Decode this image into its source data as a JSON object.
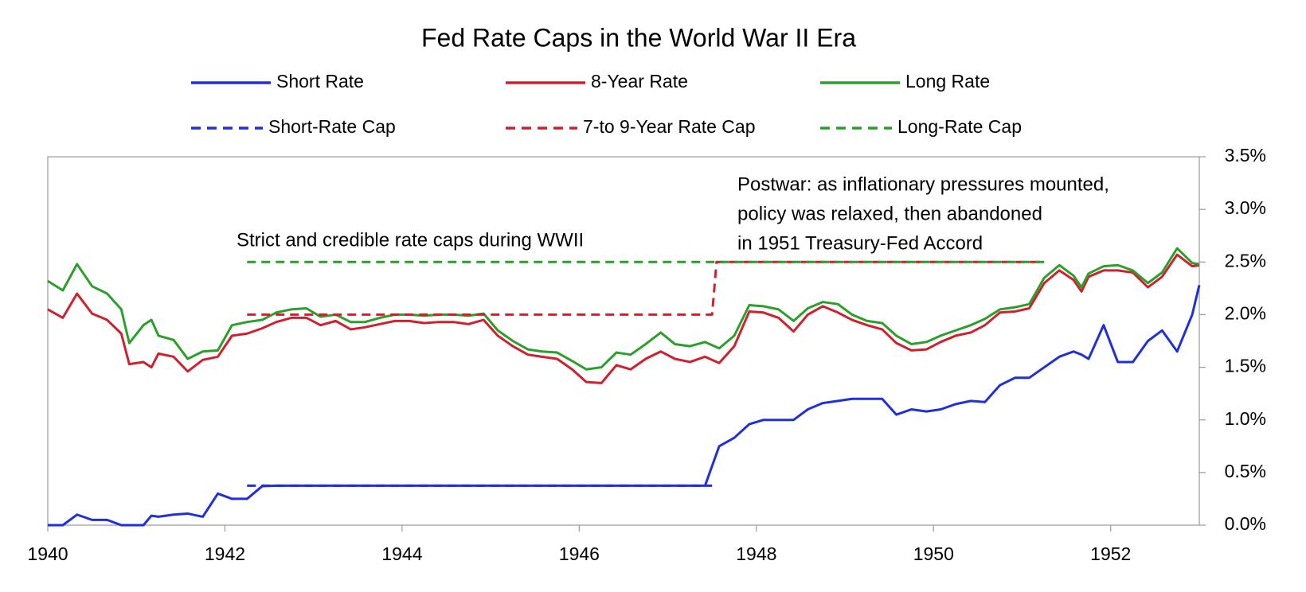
{
  "chart_data": {
    "type": "line",
    "title": "Fed Rate Caps in the World War II Era",
    "x": [
      1940.0,
      1940.17,
      1940.33,
      1940.5,
      1940.67,
      1940.83,
      1940.92,
      1941.08,
      1941.17,
      1941.25,
      1941.42,
      1941.58,
      1941.75,
      1941.92,
      1942.08,
      1942.25,
      1942.42,
      1942.58,
      1942.75,
      1942.92,
      1943.08,
      1943.25,
      1943.42,
      1943.58,
      1943.75,
      1943.92,
      1944.08,
      1944.25,
      1944.42,
      1944.58,
      1944.75,
      1944.92,
      1945.08,
      1945.25,
      1945.42,
      1945.58,
      1945.75,
      1945.92,
      1946.08,
      1946.25,
      1946.42,
      1946.58,
      1946.75,
      1946.92,
      1947.08,
      1947.25,
      1947.42,
      1947.58,
      1947.75,
      1947.92,
      1948.08,
      1948.25,
      1948.42,
      1948.58,
      1948.75,
      1948.92,
      1949.08,
      1949.25,
      1949.42,
      1949.58,
      1949.75,
      1949.92,
      1950.08,
      1950.25,
      1950.42,
      1950.58,
      1950.75,
      1950.92,
      1951.08,
      1951.25,
      1951.42,
      1951.58,
      1951.67,
      1951.75,
      1951.92,
      1952.08,
      1952.25,
      1952.42,
      1952.58,
      1952.75,
      1952.92,
      1953.0
    ],
    "series": [
      {
        "name": "Short Rate",
        "color": "#1f2fe0",
        "dashed": false,
        "values": [
          0.0,
          0.0,
          0.1,
          0.05,
          0.05,
          0.0,
          0.0,
          0.0,
          0.09,
          0.08,
          0.1,
          0.11,
          0.08,
          0.3,
          0.25,
          0.25,
          0.37,
          0.375,
          0.375,
          0.375,
          0.375,
          0.375,
          0.375,
          0.375,
          0.375,
          0.375,
          0.375,
          0.375,
          0.375,
          0.375,
          0.375,
          0.375,
          0.375,
          0.375,
          0.375,
          0.375,
          0.375,
          0.375,
          0.375,
          0.375,
          0.375,
          0.375,
          0.375,
          0.375,
          0.375,
          0.375,
          0.375,
          0.75,
          0.83,
          0.96,
          1.0,
          1.0,
          1.0,
          1.1,
          1.16,
          1.18,
          1.2,
          1.2,
          1.2,
          1.05,
          1.1,
          1.08,
          1.1,
          1.15,
          1.18,
          1.17,
          1.33,
          1.4,
          1.4,
          1.5,
          1.6,
          1.65,
          1.62,
          1.58,
          1.9,
          1.55,
          1.55,
          1.75,
          1.85,
          1.65,
          2.0,
          2.28
        ]
      },
      {
        "name": "8-Year Rate",
        "color": "#d0202e",
        "dashed": false,
        "values": [
          2.05,
          1.97,
          2.2,
          2.01,
          1.95,
          1.82,
          1.53,
          1.55,
          1.5,
          1.63,
          1.6,
          1.46,
          1.57,
          1.6,
          1.8,
          1.82,
          1.87,
          1.93,
          1.97,
          1.97,
          1.9,
          1.94,
          1.86,
          1.88,
          1.91,
          1.94,
          1.94,
          1.92,
          1.93,
          1.93,
          1.91,
          1.95,
          1.8,
          1.7,
          1.62,
          1.6,
          1.58,
          1.48,
          1.36,
          1.35,
          1.52,
          1.48,
          1.58,
          1.65,
          1.58,
          1.55,
          1.6,
          1.54,
          1.7,
          2.03,
          2.02,
          1.97,
          1.84,
          2.0,
          2.08,
          2.02,
          1.95,
          1.9,
          1.86,
          1.73,
          1.66,
          1.67,
          1.74,
          1.8,
          1.83,
          1.9,
          2.02,
          2.03,
          2.06,
          2.3,
          2.42,
          2.33,
          2.22,
          2.36,
          2.42,
          2.42,
          2.4,
          2.26,
          2.36,
          2.57,
          2.46,
          2.47
        ]
      },
      {
        "name": "Long Rate",
        "color": "#2aa02a",
        "dashed": false,
        "values": [
          2.32,
          2.23,
          2.48,
          2.27,
          2.2,
          2.05,
          1.73,
          1.9,
          1.95,
          1.8,
          1.76,
          1.58,
          1.65,
          1.66,
          1.9,
          1.93,
          1.95,
          2.02,
          2.05,
          2.06,
          1.98,
          2.0,
          1.93,
          1.93,
          1.97,
          2.0,
          2.0,
          1.99,
          2.0,
          2.0,
          1.99,
          2.01,
          1.85,
          1.75,
          1.67,
          1.65,
          1.64,
          1.56,
          1.48,
          1.5,
          1.64,
          1.62,
          1.72,
          1.83,
          1.72,
          1.7,
          1.74,
          1.68,
          1.8,
          2.09,
          2.08,
          2.05,
          1.94,
          2.06,
          2.12,
          2.1,
          2.0,
          1.94,
          1.92,
          1.8,
          1.72,
          1.74,
          1.8,
          1.85,
          1.9,
          1.96,
          2.05,
          2.07,
          2.1,
          2.35,
          2.47,
          2.37,
          2.26,
          2.39,
          2.46,
          2.47,
          2.42,
          2.3,
          2.4,
          2.63,
          2.49,
          2.48
        ]
      },
      {
        "name": "Short-Rate Cap",
        "color": "#1f2fe0",
        "dashed": true,
        "x": [
          1942.25,
          1947.5
        ],
        "values": [
          0.375,
          0.375
        ]
      },
      {
        "name": "7-to 9-Year Rate Cap",
        "color": "#d0202e",
        "dashed": true,
        "x": [
          1942.25,
          1947.5,
          1947.55,
          1951.25
        ],
        "values": [
          2.0,
          2.0,
          2.5,
          2.5
        ]
      },
      {
        "name": "Long-Rate Cap",
        "color": "#2aa02a",
        "dashed": true,
        "x": [
          1942.25,
          1951.25
        ],
        "values": [
          2.5,
          2.5
        ]
      }
    ],
    "xlim": [
      1940,
      1953
    ],
    "xticks": [
      1940,
      1942,
      1944,
      1946,
      1948,
      1950,
      1952
    ],
    "ylim": [
      0,
      3.5
    ],
    "yticks": [
      {
        "value": 0,
        "label": "0.0%"
      },
      {
        "value": 0.5,
        "label": "0.5%"
      },
      {
        "value": 1,
        "label": "1.0%"
      },
      {
        "value": 1.5,
        "label": "1.5%"
      },
      {
        "value": 2,
        "label": "2.0%"
      },
      {
        "value": 2.5,
        "label": "2.5%"
      },
      {
        "value": 3,
        "label": "3.0%"
      },
      {
        "value": 3.5,
        "label": "3.5%"
      }
    ],
    "y_axis_side": "right",
    "grid": false,
    "legend": "top",
    "annotations": [
      [
        "Strict and credible rate caps during WWII"
      ],
      [
        "Postwar: as inflationary pressures mounted,",
        "policy was relaxed, then abandoned",
        "in 1951 Treasury-Fed Accord"
      ]
    ]
  }
}
